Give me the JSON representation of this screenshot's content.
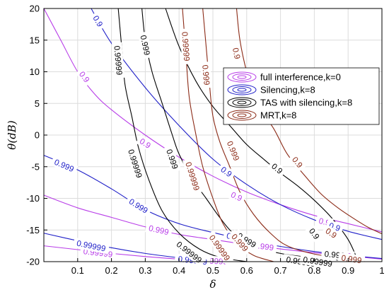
{
  "chart_data": {
    "type": "line",
    "xlabel": "δ",
    "ylabel": "θ(dB)",
    "xlim": [
      0,
      1
    ],
    "ylim": [
      -20,
      20
    ],
    "xticks": [
      "0.1",
      "0.2",
      "0.3",
      "0.4",
      "0.5",
      "0.6",
      "0.7",
      "0.8",
      "0.9",
      "1"
    ],
    "yticks": [
      "-20",
      "-15",
      "-10",
      "-5",
      "0",
      "5",
      "10",
      "15",
      "20"
    ],
    "grid": true,
    "legend_position": "top-right",
    "colors": {
      "full": "#b83de8",
      "silencing": "#1f1fc8",
      "tas": "#000000",
      "mrt": "#8b2a16"
    },
    "series": [
      {
        "name": "full interference,k=0",
        "color_key": "full",
        "contours": [
          {
            "label": "0.9",
            "points": [
              [
                0.0,
                20
              ],
              [
                0.05,
                15
              ],
              [
                0.1,
                10
              ],
              [
                0.15,
                6.5
              ],
              [
                0.2,
                4
              ],
              [
                0.3,
                0
              ],
              [
                0.4,
                -3.5
              ],
              [
                0.5,
                -6.5
              ],
              [
                0.6,
                -9
              ],
              [
                0.7,
                -11
              ],
              [
                0.8,
                -12.7
              ],
              [
                0.9,
                -14
              ],
              [
                1.0,
                -15.3
              ]
            ],
            "label_at": [
              [
                0.12,
                9.2
              ],
              [
                0.3,
                -1.3
              ],
              [
                0.57,
                -9.7
              ],
              [
                0.83,
                -13.7
              ]
            ]
          },
          {
            "label": "0.999",
            "points": [
              [
                0.0,
                -9.5
              ],
              [
                0.1,
                -11.5
              ],
              [
                0.2,
                -13
              ],
              [
                0.3,
                -14.5
              ],
              [
                0.4,
                -15.7
              ],
              [
                0.5,
                -16.5
              ],
              [
                0.6,
                -17.3
              ],
              [
                0.7,
                -18
              ],
              [
                0.8,
                -18.6
              ],
              [
                0.9,
                -19.1
              ],
              [
                1.0,
                -19.6
              ]
            ],
            "label_at": [
              [
                0.34,
                -15
              ],
              [
                0.65,
                -17.6
              ],
              [
                0.88,
                -19
              ]
            ]
          },
          {
            "label": "0.99999",
            "points": [
              [
                0.0,
                -17.5
              ],
              [
                0.1,
                -18.1
              ],
              [
                0.2,
                -18.7
              ],
              [
                0.3,
                -19.2
              ],
              [
                0.4,
                -19.6
              ],
              [
                0.5,
                -19.9
              ],
              [
                0.55,
                -20
              ]
            ],
            "label_at": [
              [
                0.16,
                -18.6
              ],
              [
                0.5,
                -19.9
              ]
            ]
          }
        ]
      },
      {
        "name": "Silencing,k=8",
        "color_key": "silencing",
        "contours": [
          {
            "label": "0.9",
            "points": [
              [
                0.14,
                20
              ],
              [
                0.2,
                14.5
              ],
              [
                0.3,
                7.5
              ],
              [
                0.4,
                1.5
              ],
              [
                0.5,
                -3.8
              ],
              [
                0.6,
                -7.8
              ],
              [
                0.7,
                -11
              ],
              [
                0.8,
                -13.4
              ],
              [
                0.9,
                -15.2
              ],
              [
                1.0,
                -16.5
              ]
            ],
            "label_at": [
              [
                0.16,
                18
              ],
              [
                0.54,
                -5.8
              ],
              [
                0.86,
                -14.5
              ]
            ]
          },
          {
            "label": "0.999",
            "points": [
              [
                0.0,
                -3.2
              ],
              [
                0.1,
                -5.5
              ],
              [
                0.2,
                -8.5
              ],
              [
                0.3,
                -11.8
              ],
              [
                0.4,
                -14
              ],
              [
                0.5,
                -15.4
              ],
              [
                0.6,
                -16.6
              ],
              [
                0.7,
                -17.6
              ],
              [
                0.8,
                -18.4
              ],
              [
                0.9,
                -19
              ],
              [
                1.0,
                -19.5
              ]
            ],
            "label_at": [
              [
                0.06,
                -4.8
              ],
              [
                0.28,
                -11.2
              ],
              [
                0.57,
                -16.2
              ]
            ]
          },
          {
            "label": "0.99999",
            "points": [
              [
                0.0,
                -15.5
              ],
              [
                0.1,
                -16.7
              ],
              [
                0.2,
                -17.8
              ],
              [
                0.3,
                -18.7
              ],
              [
                0.4,
                -19.4
              ],
              [
                0.5,
                -20
              ]
            ],
            "label_at": [
              [
                0.14,
                -17.5
              ],
              [
                0.44,
                -19.8
              ]
            ]
          }
        ]
      },
      {
        "name": "TAS with silencing,k=8",
        "color_key": "tas",
        "contours": [
          {
            "label": "0.9",
            "points": [
              [
                0.36,
                20
              ],
              [
                0.4,
                14
              ],
              [
                0.45,
                8.5
              ],
              [
                0.5,
                4.5
              ],
              [
                0.55,
                1.5
              ],
              [
                0.6,
                -1.5
              ],
              [
                0.65,
                -3.8
              ],
              [
                0.7,
                -6
              ],
              [
                0.75,
                -8
              ],
              [
                0.8,
                -10.3
              ],
              [
                0.85,
                -13
              ],
              [
                0.9,
                -16.5
              ],
              [
                0.93,
                -20
              ]
            ],
            "label_at": [
              [
                0.69,
                -5.3
              ],
              [
                0.8,
                -15.6
              ]
            ]
          },
          {
            "label": "0.999",
            "points": [
              [
                0.29,
                20
              ],
              [
                0.3,
                15
              ],
              [
                0.32,
                10
              ],
              [
                0.35,
                5
              ],
              [
                0.38,
                0
              ],
              [
                0.4,
                -3
              ],
              [
                0.44,
                -7
              ],
              [
                0.48,
                -10
              ],
              [
                0.52,
                -13
              ],
              [
                0.56,
                -15.5
              ],
              [
                0.62,
                -17.5
              ],
              [
                0.7,
                -18.7
              ],
              [
                0.8,
                -19.4
              ],
              [
                0.9,
                -19.9
              ],
              [
                0.94,
                -20
              ]
            ],
            "label_at": [
              [
                0.3,
                14.2
              ],
              [
                0.38,
                -3.8
              ],
              [
                0.6,
                -16.6
              ],
              [
                0.86,
                -18.9
              ]
            ]
          },
          {
            "label": "0.99999",
            "points": [
              [
                0.22,
                20
              ],
              [
                0.23,
                14
              ],
              [
                0.24,
                8
              ],
              [
                0.26,
                3
              ],
              [
                0.28,
                -2
              ],
              [
                0.31,
                -7
              ],
              [
                0.35,
                -12
              ],
              [
                0.4,
                -15.5
              ],
              [
                0.46,
                -18
              ],
              [
                0.52,
                -19.3
              ],
              [
                0.6,
                -20
              ]
            ],
            "label_at": [
              [
                0.22,
                11.8
              ],
              [
                0.27,
                -4.5
              ],
              [
                0.43,
                -18.5
              ],
              [
                0.76,
                -20
              ],
              [
                0.81,
                -20
              ]
            ]
          }
        ]
      },
      {
        "name": "MRT,k=8",
        "color_key": "mrt",
        "contours": [
          {
            "label": "0.9",
            "points": [
              [
                0.57,
                20
              ],
              [
                0.58,
                15
              ],
              [
                0.6,
                10
              ],
              [
                0.63,
                5
              ],
              [
                0.68,
                1
              ],
              [
                0.72,
                -3
              ],
              [
                0.77,
                -6.3
              ],
              [
                0.82,
                -9.3
              ],
              [
                0.87,
                -11.5
              ],
              [
                0.92,
                -13.3
              ],
              [
                0.96,
                -14.6
              ],
              [
                1.0,
                -15.6
              ]
            ],
            "label_at": [
              [
                0.57,
                12.9
              ],
              [
                0.75,
                -4.3
              ],
              [
                0.85,
                -15.5
              ]
            ]
          },
          {
            "label": "0.999",
            "points": [
              [
                0.47,
                20
              ],
              [
                0.48,
                14
              ],
              [
                0.49,
                8
              ],
              [
                0.5,
                3
              ],
              [
                0.52,
                -1
              ],
              [
                0.55,
                -5
              ],
              [
                0.58,
                -9
              ],
              [
                0.62,
                -12.5
              ],
              [
                0.67,
                -15.5
              ],
              [
                0.72,
                -17.5
              ],
              [
                0.8,
                -18.8
              ],
              [
                0.9,
                -19.6
              ],
              [
                0.95,
                -20
              ]
            ],
            "label_at": [
              [
                0.48,
                9.5
              ],
              [
                0.56,
                -2.5
              ],
              [
                0.58,
                -17
              ],
              [
                0.91,
                -19.6
              ]
            ]
          },
          {
            "label": "0.99999",
            "points": [
              [
                0.41,
                20
              ],
              [
                0.42,
                13
              ],
              [
                0.43,
                6
              ],
              [
                0.45,
                0
              ],
              [
                0.47,
                -5
              ],
              [
                0.5,
                -10
              ],
              [
                0.53,
                -14
              ],
              [
                0.57,
                -17
              ],
              [
                0.62,
                -19
              ],
              [
                0.68,
                -20
              ]
            ],
            "label_at": [
              [
                0.42,
                14
              ],
              [
                0.44,
                -6.5
              ],
              [
                0.52,
                -17.8
              ]
            ]
          }
        ]
      }
    ]
  }
}
